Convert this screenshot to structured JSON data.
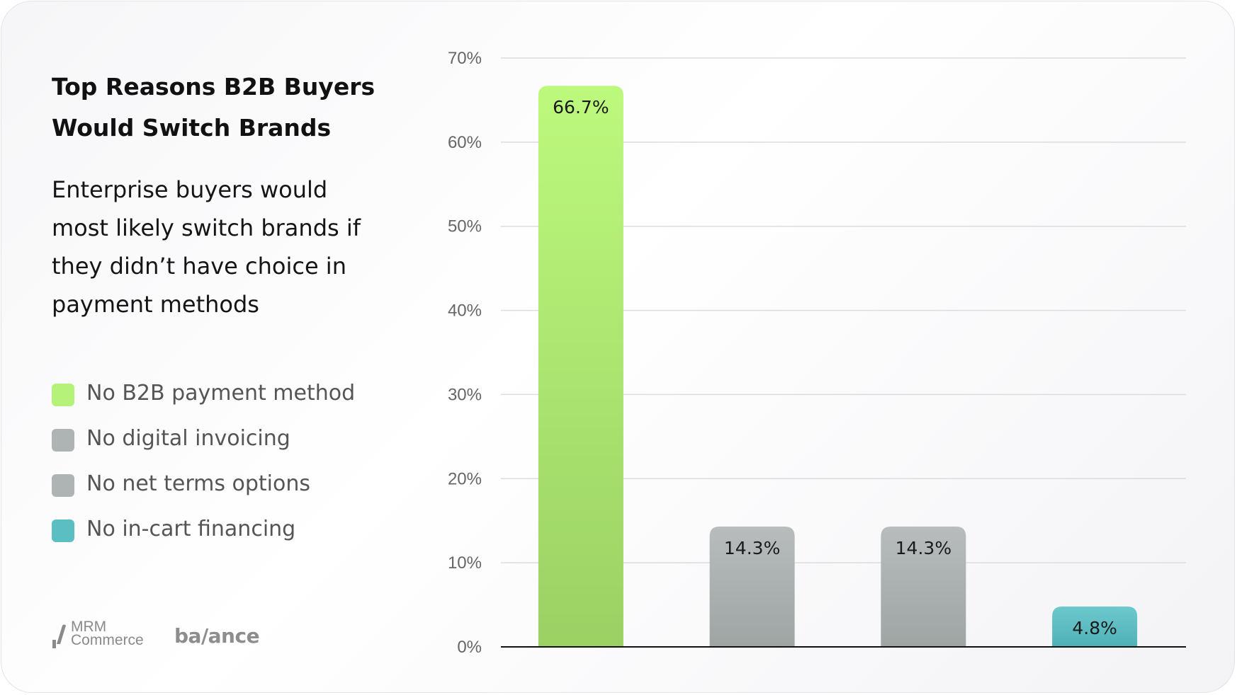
{
  "title": "Top Reasons B2B Buyers Would Switch Brands",
  "subtitle": "Enterprise buyers would most likely switch brands if they didn’t have choice in payment methods",
  "legend": [
    {
      "label": "No B2B payment method",
      "color": "#b4f27a"
    },
    {
      "label": "No digital invoicing",
      "color": "#aeb3b3"
    },
    {
      "label": "No net terms options",
      "color": "#aeb3b3"
    },
    {
      "label": "No in-cart financing",
      "color": "#5bbec3"
    }
  ],
  "logos": {
    "mrm": "MRM\nCommerce",
    "balance": "ba/ance"
  },
  "chart_data": {
    "type": "bar",
    "categories": [
      "No B2B payment method",
      "No digital invoicing",
      "No net terms options",
      "No in-cart financing"
    ],
    "values": [
      66.7,
      14.3,
      14.3,
      4.8
    ],
    "value_labels": [
      "66.7%",
      "14.3%",
      "14.3%",
      "4.8%"
    ],
    "colors": [
      [
        "#bdf97d",
        "#9bd164"
      ],
      [
        "#b8bcbc",
        "#9ea5a3"
      ],
      [
        "#b8bcbc",
        "#9ea5a3"
      ],
      [
        "#6cc9ce",
        "#4fb1b6"
      ]
    ],
    "ylim": [
      0,
      70
    ],
    "yticks": [
      0,
      10,
      20,
      30,
      40,
      50,
      60,
      70
    ],
    "ytick_labels": [
      "0%",
      "10%",
      "20%",
      "30%",
      "40%",
      "50%",
      "60%",
      "70%"
    ],
    "grid": true,
    "legend_position": "left"
  }
}
